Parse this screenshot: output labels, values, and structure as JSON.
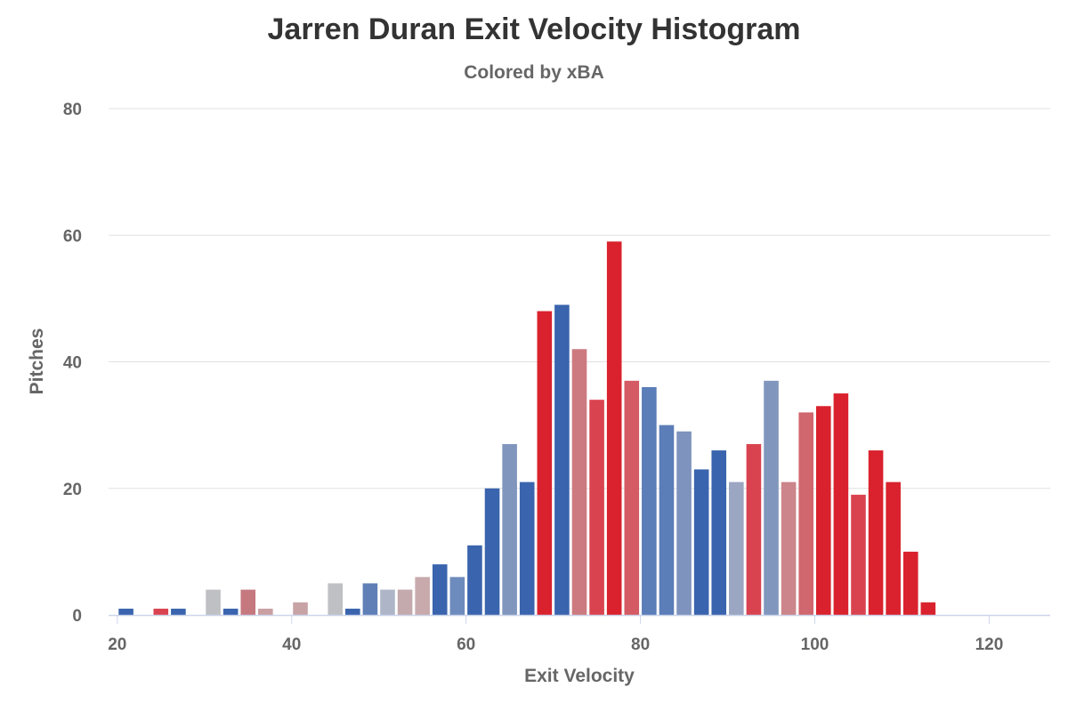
{
  "chart_data": {
    "type": "bar",
    "title": "Jarren Duran Exit Velocity Histogram",
    "subtitle": "Colored by xBA",
    "xlabel": "Exit Velocity",
    "ylabel": "Pitches",
    "xlim": [
      19,
      127
    ],
    "ylim": [
      0,
      80
    ],
    "x_ticks": [
      20,
      40,
      60,
      80,
      100,
      120
    ],
    "y_ticks": [
      0,
      20,
      40,
      60,
      80
    ],
    "grid": true,
    "legend": "none",
    "bin_width": 2,
    "bars": [
      {
        "x": 21,
        "value": 1,
        "color": "#3a64ad"
      },
      {
        "x": 25,
        "value": 1,
        "color": "#d9434f"
      },
      {
        "x": 27,
        "value": 1,
        "color": "#3a64ad"
      },
      {
        "x": 31,
        "value": 4,
        "color": "#bfc0c4"
      },
      {
        "x": 33,
        "value": 1,
        "color": "#3a64ad"
      },
      {
        "x": 35,
        "value": 4,
        "color": "#c6787f"
      },
      {
        "x": 37,
        "value": 1,
        "color": "#c99fa2"
      },
      {
        "x": 41,
        "value": 2,
        "color": "#c8a3a6"
      },
      {
        "x": 45,
        "value": 5,
        "color": "#bfc0c4"
      },
      {
        "x": 47,
        "value": 1,
        "color": "#3a64ad"
      },
      {
        "x": 49,
        "value": 5,
        "color": "#5f7fb6"
      },
      {
        "x": 51,
        "value": 4,
        "color": "#aeb5c7"
      },
      {
        "x": 53,
        "value": 4,
        "color": "#c4a9ad"
      },
      {
        "x": 55,
        "value": 6,
        "color": "#c8aaad"
      },
      {
        "x": 57,
        "value": 8,
        "color": "#3a64ad"
      },
      {
        "x": 59,
        "value": 6,
        "color": "#6e8bbd"
      },
      {
        "x": 61,
        "value": 11,
        "color": "#3a64ad"
      },
      {
        "x": 63,
        "value": 20,
        "color": "#3a64ad"
      },
      {
        "x": 65,
        "value": 27,
        "color": "#8196bd"
      },
      {
        "x": 67,
        "value": 21,
        "color": "#3a64ad"
      },
      {
        "x": 69,
        "value": 48,
        "color": "#d9222d"
      },
      {
        "x": 71,
        "value": 49,
        "color": "#3a64ad"
      },
      {
        "x": 73,
        "value": 42,
        "color": "#cc7a80"
      },
      {
        "x": 75,
        "value": 34,
        "color": "#d9434f"
      },
      {
        "x": 77,
        "value": 59,
        "color": "#d9222d"
      },
      {
        "x": 79,
        "value": 37,
        "color": "#d45a63"
      },
      {
        "x": 81,
        "value": 36,
        "color": "#5b7db8"
      },
      {
        "x": 83,
        "value": 30,
        "color": "#5b7db8"
      },
      {
        "x": 85,
        "value": 29,
        "color": "#7e93bd"
      },
      {
        "x": 87,
        "value": 23,
        "color": "#3a64ad"
      },
      {
        "x": 89,
        "value": 26,
        "color": "#3a64ad"
      },
      {
        "x": 91,
        "value": 21,
        "color": "#9aa6c2"
      },
      {
        "x": 93,
        "value": 27,
        "color": "#d9434f"
      },
      {
        "x": 95,
        "value": 37,
        "color": "#8196bd"
      },
      {
        "x": 97,
        "value": 21,
        "color": "#cc858a"
      },
      {
        "x": 99,
        "value": 32,
        "color": "#d0666e"
      },
      {
        "x": 101,
        "value": 33,
        "color": "#d9222d"
      },
      {
        "x": 103,
        "value": 35,
        "color": "#d9222d"
      },
      {
        "x": 105,
        "value": 19,
        "color": "#d9434f"
      },
      {
        "x": 107,
        "value": 26,
        "color": "#d9222d"
      },
      {
        "x": 109,
        "value": 21,
        "color": "#d9222d"
      },
      {
        "x": 111,
        "value": 10,
        "color": "#d9222d"
      },
      {
        "x": 113,
        "value": 2,
        "color": "#d9222d"
      }
    ],
    "colors": {
      "grid": "#e1e1e1",
      "axis": "#ccd6eb",
      "label": "#666666",
      "title": "#333333"
    }
  }
}
